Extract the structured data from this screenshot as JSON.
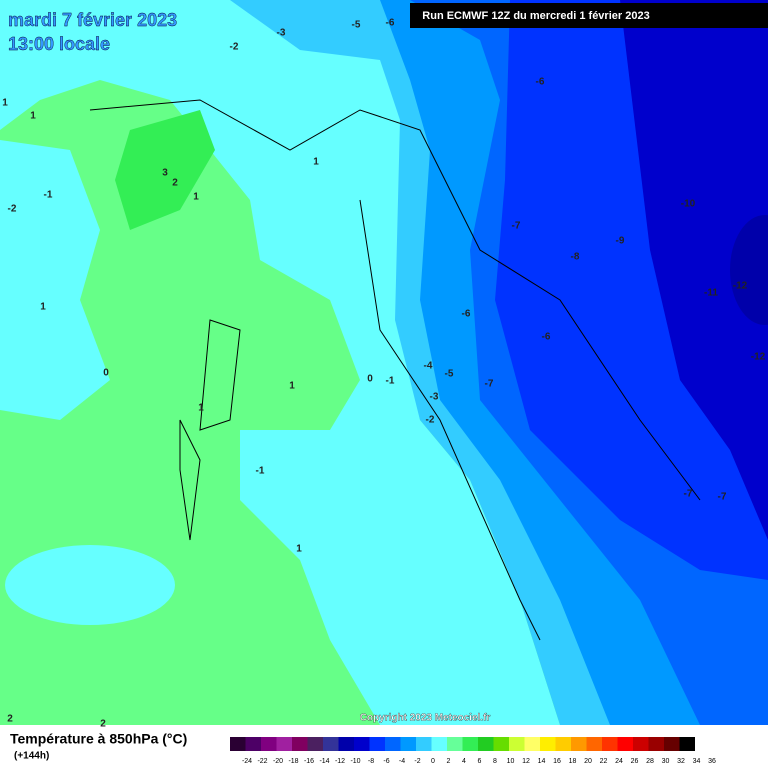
{
  "header": {
    "date": "mardi 7 février 2023",
    "time": "13:00 locale",
    "run": "Run ECMWF 12Z du mercredi 1 février 2023"
  },
  "map": {
    "contour_labels": [
      -2,
      -3,
      -5,
      -6,
      -6,
      1,
      1,
      3,
      2,
      1,
      1,
      -1,
      -2,
      -7,
      -8,
      -9,
      -10,
      -11,
      -12,
      -12,
      -6,
      -6,
      1,
      0,
      1,
      0,
      -1,
      -4,
      -5,
      -7,
      -3,
      -2,
      1,
      -1,
      1,
      -7,
      -7,
      2,
      2
    ],
    "copyright": "Copyright 2023 Meteociel.fr"
  },
  "legend": {
    "title": "Température à 850hPa (°C)",
    "lead": "(+144h)",
    "values": [
      -24,
      -22,
      -20,
      -18,
      -16,
      -14,
      -12,
      -10,
      -8,
      -6,
      -4,
      -2,
      0,
      2,
      4,
      6,
      8,
      10,
      12,
      14,
      16,
      18,
      20,
      22,
      24,
      26,
      28,
      30,
      32,
      34,
      36
    ],
    "colors": [
      "#2a0033",
      "#4d0066",
      "#800080",
      "#a020a0",
      "#800060",
      "#4b2060",
      "#333399",
      "#0000aa",
      "#0000cc",
      "#0033ff",
      "#0066ff",
      "#0099ff",
      "#33ccff",
      "#66ffff",
      "#66ff99",
      "#33ee55",
      "#22cc22",
      "#66dd00",
      "#ccff33",
      "#ffff66",
      "#ffee00",
      "#ffcc00",
      "#ff9900",
      "#ff6600",
      "#ff3300",
      "#ff0000",
      "#cc0000",
      "#990000",
      "#660000",
      "#000000"
    ]
  }
}
